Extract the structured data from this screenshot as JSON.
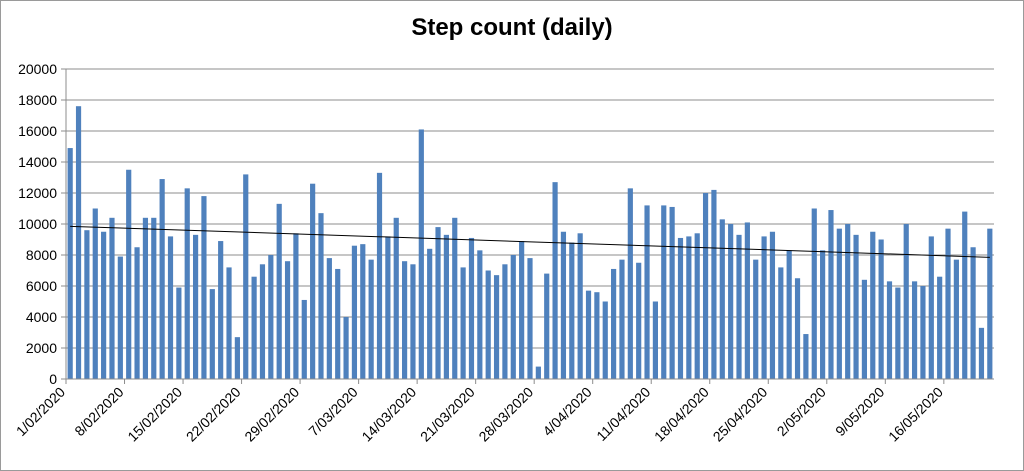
{
  "chart_data": {
    "type": "bar",
    "title": "Step count (daily)",
    "xlabel": "",
    "ylabel": "",
    "ylim": [
      0,
      20000
    ],
    "y_ticks": [
      0,
      2000,
      4000,
      6000,
      8000,
      10000,
      12000,
      14000,
      16000,
      18000,
      20000
    ],
    "grid": "horizontal",
    "legend": "none",
    "bar_color": "#4f81bd",
    "trendline": {
      "type": "linear",
      "color": "#000000",
      "start": 9850,
      "end": 7850
    },
    "x_tick_labels": [
      "1/02/2020",
      "8/02/2020",
      "15/02/2020",
      "22/02/2020",
      "29/02/2020",
      "7/03/2020",
      "14/03/2020",
      "21/03/2020",
      "28/03/2020",
      "4/04/2020",
      "11/04/2020",
      "18/04/2020",
      "25/04/2020",
      "2/05/2020",
      "9/05/2020",
      "16/05/2020"
    ],
    "start_date": "1/02/2020",
    "values": [
      14900,
      17600,
      9600,
      11000,
      9500,
      10400,
      7900,
      13500,
      8500,
      10400,
      10400,
      12900,
      9200,
      5900,
      12300,
      9300,
      11800,
      5800,
      8900,
      7200,
      2700,
      13200,
      6600,
      7400,
      8000,
      11300,
      7600,
      9400,
      5100,
      12600,
      10700,
      7800,
      7100,
      4000,
      8600,
      8700,
      7700,
      13300,
      9200,
      10400,
      7600,
      7400,
      16100,
      8400,
      9800,
      9300,
      10400,
      7200,
      9100,
      8300,
      7000,
      6700,
      7400,
      8000,
      8900,
      7800,
      800,
      6800,
      12700,
      9500,
      8800,
      9400,
      5700,
      5600,
      5000,
      7100,
      7700,
      12300,
      7500,
      11200,
      5000,
      11200,
      11100,
      9100,
      9200,
      9400,
      12000,
      12200,
      10300,
      10000,
      9300,
      10100,
      7700,
      9200,
      9500,
      7200,
      8300,
      6500,
      2900,
      11000,
      8300,
      10900,
      9700,
      10000,
      9300,
      6400,
      9500,
      9000,
      6300,
      5900,
      10000,
      6300,
      6000,
      9200,
      6600,
      9700,
      7700,
      10800,
      8500,
      3300,
      9700
    ]
  }
}
